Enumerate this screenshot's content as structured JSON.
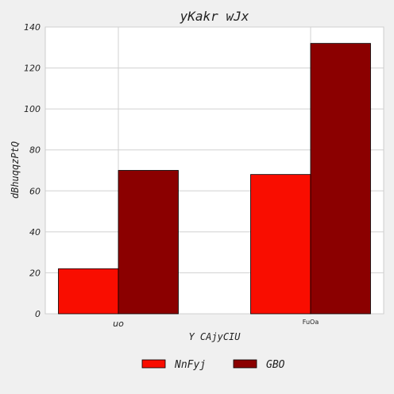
{
  "chart_data": {
    "type": "bar",
    "title": "yKakr wJx",
    "xlabel": "Y CAjyCIU",
    "ylabel": "dBhuqqzPtQ",
    "categories": [
      "uo",
      "FuOa"
    ],
    "series": [
      {
        "name": "NnFyj",
        "values": [
          22,
          68
        ],
        "color": "#f90d00"
      },
      {
        "name": "GBO",
        "values": [
          70,
          132
        ],
        "color": "#8b0000"
      }
    ],
    "ylim": [
      0,
      140
    ],
    "yticks": [
      0,
      20,
      40,
      60,
      80,
      100,
      120,
      140
    ],
    "grid": true,
    "legend_position": "bottom-center"
  }
}
